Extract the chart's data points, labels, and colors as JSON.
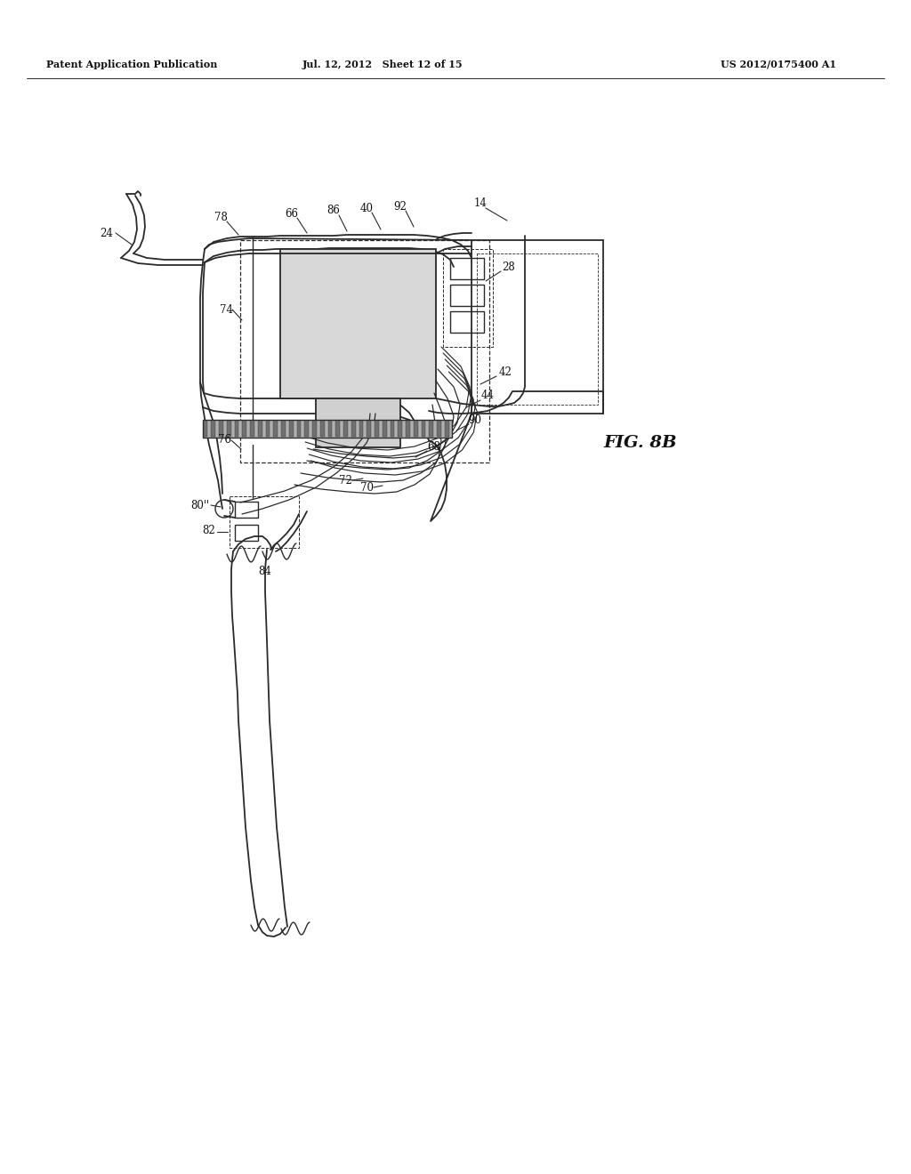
{
  "bg_color": "#ffffff",
  "line_color": "#2a2a2a",
  "header_left": "Patent Application Publication",
  "header_mid": "Jul. 12, 2012   Sheet 12 of 15",
  "header_right": "US 2012/0175400 A1",
  "fig_label": "FIG. 8B"
}
